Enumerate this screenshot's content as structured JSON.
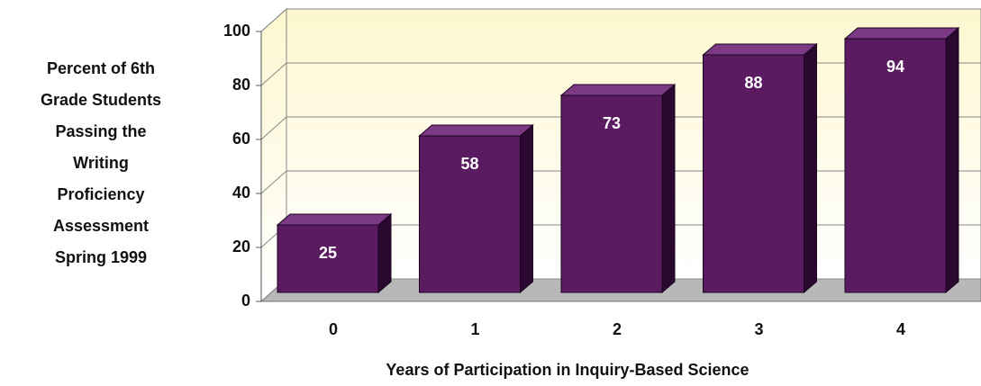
{
  "chart_data": {
    "type": "bar",
    "ylabel": [
      "Percent of 6th",
      "Grade Students",
      "Passing the",
      "Writing",
      "Proficiency",
      "Assessment",
      "Spring 1999"
    ],
    "xlabel": "Years of Participation in Inquiry-Based Science",
    "categories": [
      "0",
      "1",
      "2",
      "3",
      "4"
    ],
    "values": [
      25,
      58,
      73,
      88,
      94
    ],
    "color": "#5b1b60",
    "ylim": [
      0,
      100
    ],
    "yticks": [
      0,
      20,
      40,
      60,
      80,
      100
    ],
    "grid": true
  }
}
